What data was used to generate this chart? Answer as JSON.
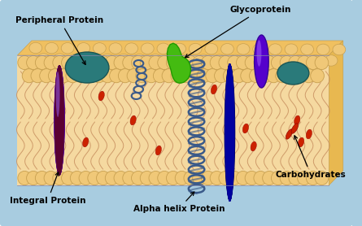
{
  "bg_color": "#a8cce0",
  "labels": {
    "peripheral_protein": "Peripheral Protein",
    "glycoprotein": "Glycoprotein",
    "integral_protein": "Integral Protein",
    "alpha_helix": "Alpha helix Protein",
    "carbohydrates": "Carbohydrates"
  },
  "mem_fill": "#f5d9a0",
  "head_color": "#f0c878",
  "head_edge": "#c8a050",
  "tail_color": "#c89060",
  "helix_color": "#3a5a8a",
  "left_protein_color": "#5500cc",
  "right_protein_color": "#000055",
  "teal_color": "#2a7a7a",
  "green_color": "#44bb11",
  "purple_color": "#5500cc",
  "red_color": "#cc2200"
}
